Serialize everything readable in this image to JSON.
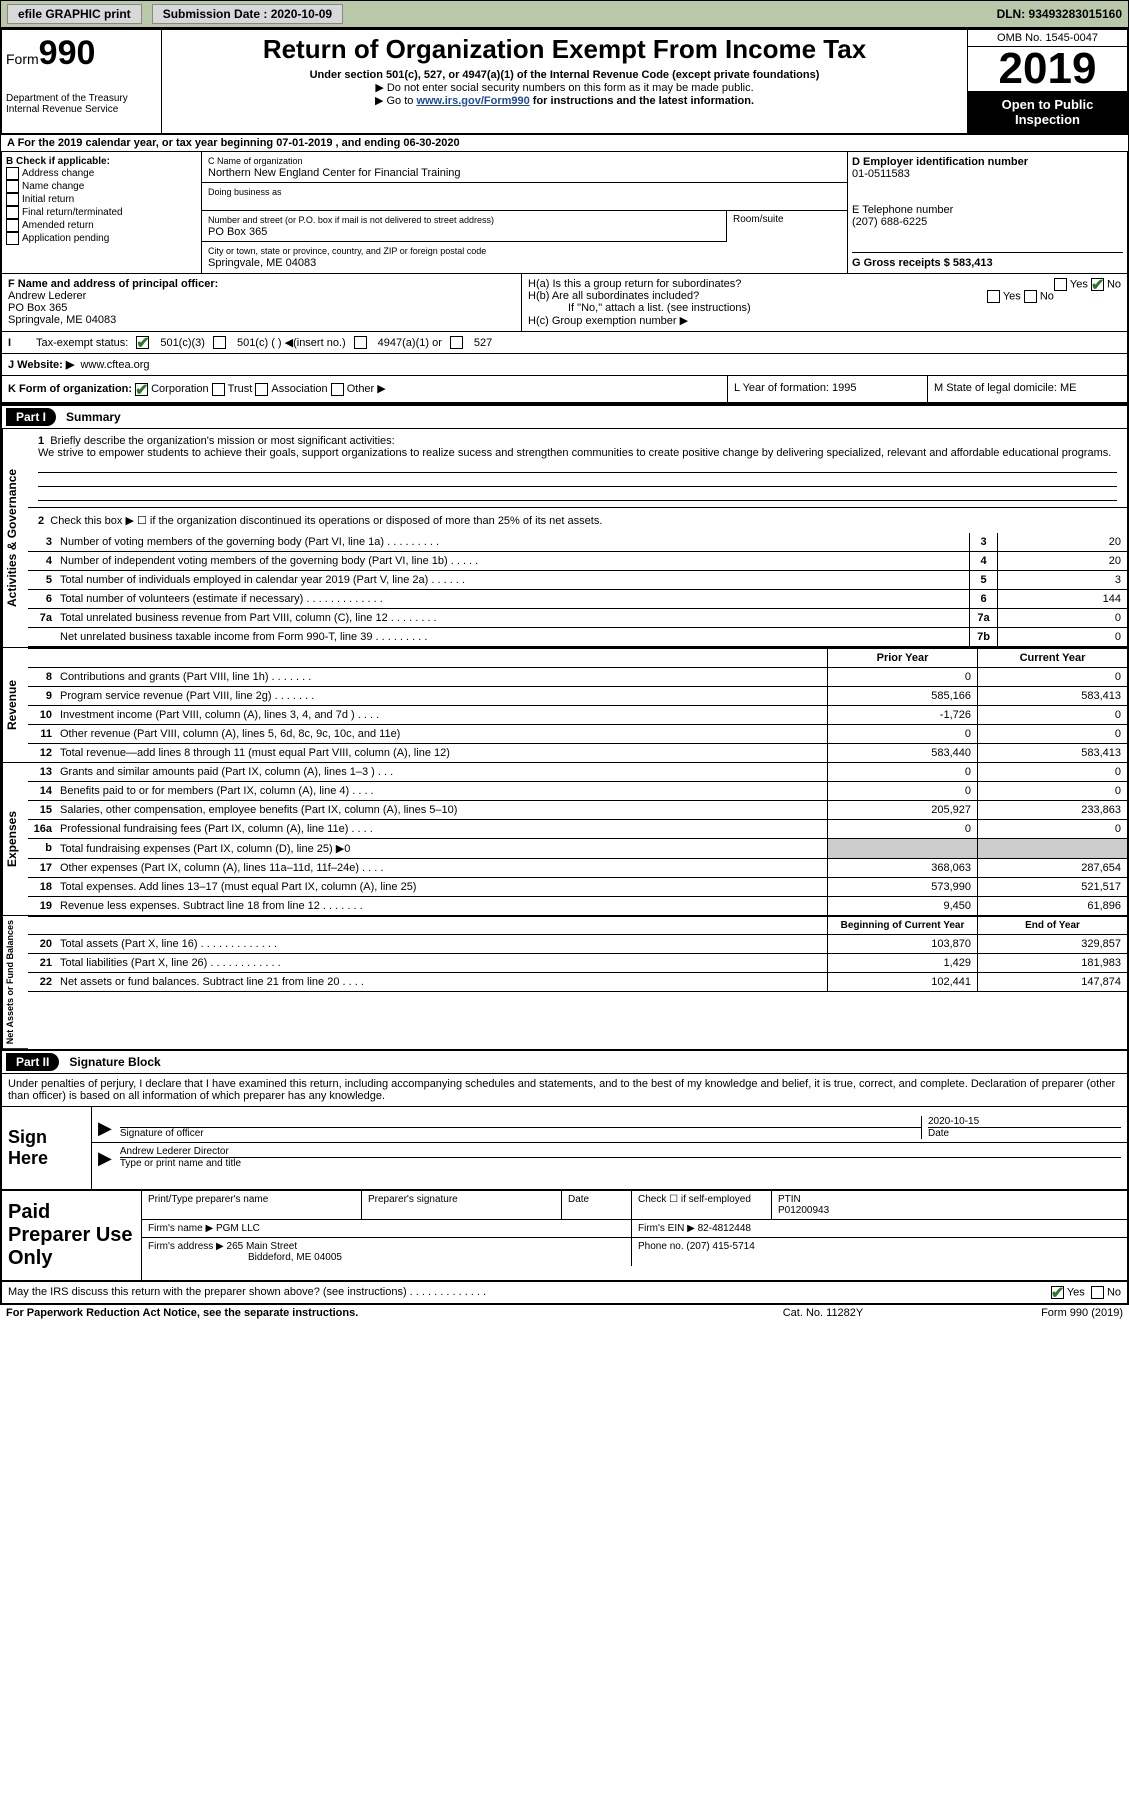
{
  "topbar": {
    "efile": "efile GRAPHIC print",
    "subdate_label": "Submission Date : 2020-10-09",
    "dln": "DLN: 93493283015160"
  },
  "header": {
    "form_label": "Form",
    "form_no": "990",
    "dept": "Department of the Treasury\nInternal Revenue Service",
    "title": "Return of Organization Exempt From Income Tax",
    "sub": "Under section 501(c), 527, or 4947(a)(1) of the Internal Revenue Code (except private foundations)",
    "note1": "▶ Do not enter social security numbers on this form as it may be made public.",
    "note2_pre": "▶ Go to ",
    "note2_link": "www.irs.gov/Form990",
    "note2_post": " for instructions and the latest information.",
    "omb": "OMB No. 1545-0047",
    "year": "2019",
    "inspect": "Open to Public Inspection"
  },
  "rowA": "A For the 2019 calendar year, or tax year beginning 07-01-2019   , and ending 06-30-2020",
  "colB": {
    "hdr": "B Check if applicable:",
    "c1": "Address change",
    "c2": "Name change",
    "c3": "Initial return",
    "c4": "Final return/terminated",
    "c5": "Amended return",
    "c6": "Application pending"
  },
  "colC": {
    "namehdr": "C Name of organization",
    "name": "Northern New England Center for\nFinancial Training",
    "dba_hdr": "Doing business as",
    "street_hdr": "Number and street (or P.O. box if mail is not delivered to street address)",
    "room_hdr": "Room/suite",
    "street": "PO Box 365",
    "city_hdr": "City or town, state or province, country, and ZIP or foreign postal code",
    "city": "Springvale, ME  04083"
  },
  "colD": {
    "ein_hdr": "D Employer identification number",
    "ein": "01-0511583",
    "tel_hdr": "E Telephone number",
    "tel": "(207) 688-6225",
    "gross_hdr": "G Gross receipts $ 583,413"
  },
  "colF": {
    "hdr": "F  Name and address of principal officer:",
    "name": "Andrew Lederer",
    "addr1": "PO Box 365",
    "addr2": "Springvale, ME  04083"
  },
  "colH": {
    "ha": "H(a)  Is this a group return for subordinates?",
    "hb": "H(b)  Are all subordinates included?",
    "hb_note": "If \"No,\" attach a list. (see instructions)",
    "hc": "H(c)  Group exemption number ▶"
  },
  "tax": {
    "lbl": "Tax-exempt status:",
    "o1": "501(c)(3)",
    "o2": "501(c) (  ) ◀(insert no.)",
    "o3": "4947(a)(1) or",
    "o4": "527"
  },
  "web": {
    "lbl": "J   Website: ▶",
    "val": "www.cftea.org"
  },
  "kform": {
    "k": "K Form of organization:",
    "corp": "Corporation",
    "trust": "Trust",
    "assoc": "Association",
    "other": "Other ▶",
    "l": "L Year of formation: 1995",
    "m": "M State of legal domicile: ME"
  },
  "part1": {
    "hdr": "Part I",
    "ttl": "Summary"
  },
  "summary": {
    "q1": "Briefly describe the organization's mission or most significant activities:",
    "q1_text": "We strive to empower students to achieve their goals, support organizations to realize sucess and strengthen communities to create positive change by delivering specialized, relevant and affordable educational programs.",
    "q2": "Check this box ▶ ☐ if the organization discontinued its operations or disposed of more than 25% of its net assets.",
    "lines": [
      {
        "n": "3",
        "t": "Number of voting members of the governing body (Part VI, line 1a)   .   .   .   .   .   .   .   .   .",
        "box": "3",
        "v": "20"
      },
      {
        "n": "4",
        "t": "Number of independent voting members of the governing body (Part VI, line 1b)  .   .   .   .   .",
        "box": "4",
        "v": "20"
      },
      {
        "n": "5",
        "t": "Total number of individuals employed in calendar year 2019 (Part V, line 2a)  .   .   .   .   .   .",
        "box": "5",
        "v": "3"
      },
      {
        "n": "6",
        "t": "Total number of volunteers (estimate if necessary)   .   .   .   .   .   .   .   .   .   .   .   .   .",
        "box": "6",
        "v": "144"
      },
      {
        "n": "7a",
        "t": "Total unrelated business revenue from Part VIII, column (C), line 12   .   .   .   .   .   .   .   .",
        "box": "7a",
        "v": "0"
      },
      {
        "n": "",
        "t": "Net unrelated business taxable income from Form 990-T, line 39   .   .   .   .   .   .   .   .   .",
        "box": "7b",
        "v": "0"
      }
    ],
    "prior_hdr": "Prior Year",
    "curr_hdr": "Current Year",
    "revenue": [
      {
        "n": "8",
        "t": "Contributions and grants (Part VIII, line 1h)   .   .   .   .   .   .   .",
        "c1": "0",
        "c2": "0"
      },
      {
        "n": "9",
        "t": "Program service revenue (Part VIII, line 2g)   .   .   .   .   .   .   .",
        "c1": "585,166",
        "c2": "583,413"
      },
      {
        "n": "10",
        "t": "Investment income (Part VIII, column (A), lines 3, 4, and 7d )   .   .   .   .",
        "c1": "-1,726",
        "c2": "0"
      },
      {
        "n": "11",
        "t": "Other revenue (Part VIII, column (A), lines 5, 6d, 8c, 9c, 10c, and 11e)",
        "c1": "0",
        "c2": "0"
      },
      {
        "n": "12",
        "t": "Total revenue—add lines 8 through 11 (must equal Part VIII, column (A), line 12)",
        "c1": "583,440",
        "c2": "583,413"
      }
    ],
    "expenses": [
      {
        "n": "13",
        "t": "Grants and similar amounts paid (Part IX, column (A), lines 1–3 )   .   .   .",
        "c1": "0",
        "c2": "0"
      },
      {
        "n": "14",
        "t": "Benefits paid to or for members (Part IX, column (A), line 4)   .   .   .   .",
        "c1": "0",
        "c2": "0"
      },
      {
        "n": "15",
        "t": "Salaries, other compensation, employee benefits (Part IX, column (A), lines 5–10)",
        "c1": "205,927",
        "c2": "233,863"
      },
      {
        "n": "16a",
        "t": "Professional fundraising fees (Part IX, column (A), line 11e)   .   .   .   .",
        "c1": "0",
        "c2": "0"
      },
      {
        "n": "b",
        "t": "Total fundraising expenses (Part IX, column (D), line 25) ▶0",
        "c1": "",
        "c2": "",
        "shade": true
      },
      {
        "n": "17",
        "t": "Other expenses (Part IX, column (A), lines 11a–11d, 11f–24e)   .   .   .   .",
        "c1": "368,063",
        "c2": "287,654"
      },
      {
        "n": "18",
        "t": "Total expenses. Add lines 13–17 (must equal Part IX, column (A), line 25)",
        "c1": "573,990",
        "c2": "521,517"
      },
      {
        "n": "19",
        "t": "Revenue less expenses. Subtract line 18 from line 12   .   .   .   .   .   .   .",
        "c1": "9,450",
        "c2": "61,896"
      }
    ],
    "net_hdr1": "Beginning of Current Year",
    "net_hdr2": "End of Year",
    "netassets": [
      {
        "n": "20",
        "t": "Total assets (Part X, line 16)   .   .   .   .   .   .   .   .   .   .   .   .   .",
        "c1": "103,870",
        "c2": "329,857"
      },
      {
        "n": "21",
        "t": "Total liabilities (Part X, line 26)   .   .   .   .   .   .   .   .   .   .   .   .",
        "c1": "1,429",
        "c2": "181,983"
      },
      {
        "n": "22",
        "t": "Net assets or fund balances. Subtract line 21 from line 20   .   .   .   .",
        "c1": "102,441",
        "c2": "147,874"
      }
    ]
  },
  "side": {
    "act": "Activities & Governance",
    "rev": "Revenue",
    "exp": "Expenses",
    "net": "Net Assets or\nFund Balances"
  },
  "part2": {
    "hdr": "Part II",
    "ttl": "Signature Block"
  },
  "sigtext": "Under penalties of perjury, I declare that I have examined this return, including accompanying schedules and statements, and to the best of my knowledge and belief, it is true, correct, and complete. Declaration of preparer (other than officer) is based on all information of which preparer has any knowledge.",
  "sign": {
    "here": "Sign Here",
    "sig_lbl": "Signature of officer",
    "date_lbl": "Date",
    "date": "2020-10-15",
    "name": "Andrew Lederer  Director",
    "name_lbl": "Type or print name and title"
  },
  "prep": {
    "lbl": "Paid Preparer Use Only",
    "c1": "Print/Type preparer's name",
    "c2": "Preparer's signature",
    "c3": "Date",
    "c4_lbl": "Check ☐ if self-employed",
    "c5_lbl": "PTIN",
    "c5": "P01200943",
    "firm_lbl": "Firm's name    ▶",
    "firm": "PGM LLC",
    "ein_lbl": "Firm's EIN ▶",
    "ein": "82-4812448",
    "addr_lbl": "Firm's address ▶",
    "addr1": "265 Main Street",
    "addr2": "Biddeford, ME  04005",
    "phone_lbl": "Phone no.",
    "phone": "(207) 415-5714"
  },
  "foot": {
    "q": "May the IRS discuss this return with the preparer shown above? (see instructions)   .   .   .   .   .   .   .   .   .   .   .   .   .",
    "yes": "Yes",
    "no": "No"
  },
  "bottom": {
    "l": "For Paperwork Reduction Act Notice, see the separate instructions.",
    "m": "Cat. No. 11282Y",
    "r": "Form 990 (2019)"
  }
}
